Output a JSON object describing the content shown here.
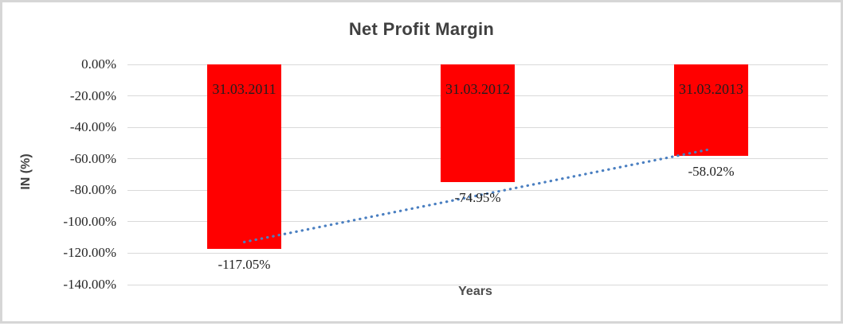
{
  "frame": {
    "background": "#ffffff",
    "border_color": "#d6d6d6"
  },
  "chart_data": {
    "type": "bar",
    "title": "Net Profit Margin",
    "xlabel": "Years",
    "ylabel": "IN (%)",
    "categories": [
      "31.03.2011",
      "31.03.2012",
      "31.03.2013"
    ],
    "values": [
      -117.05,
      -74.95,
      -58.02
    ],
    "data_labels": [
      "-117.05%",
      "-74.95%",
      "-58.02%"
    ],
    "bar_color": "#ff0000",
    "label_color": "#1f1f1f",
    "ylim": [
      -140,
      0
    ],
    "yticks": [
      {
        "label": "0.00%",
        "value": 0
      },
      {
        "label": "-20.00%",
        "value": -20
      },
      {
        "label": "-40.00%",
        "value": -40
      },
      {
        "label": "-60.00%",
        "value": -60
      },
      {
        "label": "-80.00%",
        "value": -80
      },
      {
        "label": "-100.00%",
        "value": -100
      },
      {
        "label": "-120.00%",
        "value": -120
      },
      {
        "label": "-140.00%",
        "value": -140
      }
    ],
    "gridlines": true,
    "gridline_color": "#d9d9d9",
    "legend": "none",
    "trendline": {
      "type": "linear",
      "style": "dotted",
      "color": "#4a7fc1",
      "start_value": -112.9,
      "end_value": -53.8
    }
  }
}
